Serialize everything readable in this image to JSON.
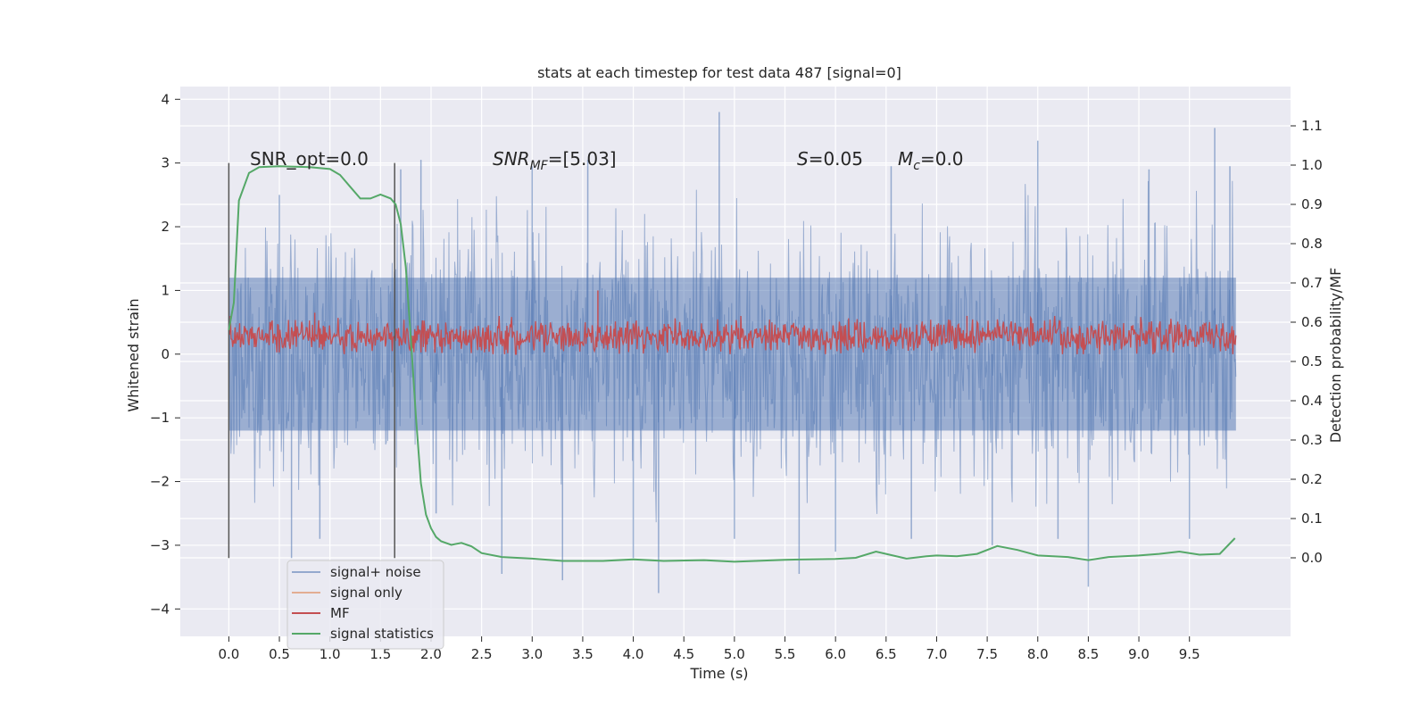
{
  "chart_data": {
    "type": "line",
    "title": "stats at each timestep for test data 487 [signal=0]",
    "xlabel": "Time (s)",
    "ylabel": "Whitened strain",
    "ylabel_right": "Detection probability/MF",
    "xlim": [
      -0.48,
      10.5
    ],
    "ylim": [
      -4.43,
      4.2
    ],
    "ylim_right": [
      -0.2,
      1.2
    ],
    "x_ticks": [
      0.0,
      0.5,
      1.0,
      1.5,
      2.0,
      2.5,
      3.0,
      3.5,
      4.0,
      4.5,
      5.0,
      5.5,
      6.0,
      6.5,
      7.0,
      7.5,
      8.0,
      8.5,
      9.0,
      9.5
    ],
    "x_tick_labels": [
      "0.0",
      "0.5",
      "1.0",
      "1.5",
      "2.0",
      "2.5",
      "3.0",
      "3.5",
      "4.0",
      "4.5",
      "5.0",
      "5.5",
      "6.0",
      "6.5",
      "7.0",
      "7.5",
      "8.0",
      "8.5",
      "9.0",
      "9.5"
    ],
    "y_ticks": [
      -4,
      -3,
      -2,
      -1,
      0,
      1,
      2,
      3,
      4
    ],
    "y_tick_labels": [
      "−4",
      "−3",
      "−2",
      "−1",
      "0",
      "1",
      "2",
      "3",
      "4"
    ],
    "y_ticks_right": [
      0.0,
      0.1,
      0.2,
      0.3,
      0.4,
      0.5,
      0.6,
      0.7,
      0.8,
      0.9,
      1.0,
      1.1
    ],
    "y_tick_labels_right": [
      "0.0",
      "0.1",
      "0.2",
      "0.3",
      "0.4",
      "0.5",
      "0.6",
      "0.7",
      "0.8",
      "0.9",
      "1.0",
      "1.1"
    ],
    "grid": true,
    "legend_position": "lower-left",
    "annotations": {
      "snr_opt": "SNR_opt=0.0",
      "snr_mf_base": "SNR",
      "snr_mf_sub": "MF",
      "snr_mf_value": "=[5.03]",
      "s_base": "S",
      "s_value": "=0.05",
      "mc_base": "M",
      "mc_sub": "c",
      "mc_value": "=0.0"
    },
    "vlines": [
      0.0,
      1.64
    ],
    "series": [
      {
        "name": "signal+ noise",
        "color": "#4c72b0",
        "axis": "left",
        "band_range": [
          -1.2,
          1.2
        ],
        "spike_points": [
          [
            0.5,
            2.5
          ],
          [
            0.62,
            -3.2
          ],
          [
            0.9,
            -2.9
          ],
          [
            1.7,
            2.9
          ],
          [
            1.9,
            3.05
          ],
          [
            2.05,
            -2.5
          ],
          [
            2.7,
            -3.45
          ],
          [
            3.0,
            2.95
          ],
          [
            3.3,
            -3.55
          ],
          [
            3.55,
            3.05
          ],
          [
            4.0,
            -3.2
          ],
          [
            4.25,
            -3.75
          ],
          [
            4.85,
            3.8
          ],
          [
            5.0,
            -2.9
          ],
          [
            5.64,
            -3.45
          ],
          [
            6.0,
            -3.1
          ],
          [
            6.55,
            2.95
          ],
          [
            6.75,
            -2.9
          ],
          [
            7.55,
            -3.0
          ],
          [
            8.0,
            3.35
          ],
          [
            8.2,
            -2.9
          ],
          [
            8.5,
            -3.65
          ],
          [
            9.1,
            2.9
          ],
          [
            9.5,
            -2.9
          ],
          [
            9.75,
            3.55
          ],
          [
            9.9,
            2.95
          ]
        ]
      },
      {
        "name": "signal only",
        "color": "#dd8452",
        "axis": "left",
        "values": []
      },
      {
        "name": "MF",
        "color": "#c44e52",
        "axis": "left",
        "band_range": [
          0.0,
          0.55
        ],
        "spike_points": [
          [
            3.65,
            1.0
          ],
          [
            0.85,
            0.65
          ],
          [
            7.3,
            0.6
          ]
        ]
      },
      {
        "name": "signal statistics",
        "color": "#55a868",
        "axis": "right",
        "x": [
          0.0,
          0.05,
          0.1,
          0.2,
          0.3,
          0.5,
          0.8,
          1.0,
          1.1,
          1.2,
          1.3,
          1.4,
          1.5,
          1.6,
          1.65,
          1.7,
          1.75,
          1.8,
          1.85,
          1.9,
          1.95,
          2.0,
          2.05,
          2.1,
          2.2,
          2.3,
          2.4,
          2.5,
          2.7,
          3.0,
          3.3,
          3.7,
          4.0,
          4.3,
          4.7,
          5.0,
          5.5,
          6.0,
          6.2,
          6.4,
          6.5,
          6.7,
          6.9,
          7.0,
          7.2,
          7.4,
          7.6,
          7.8,
          8.0,
          8.3,
          8.5,
          8.7,
          9.0,
          9.2,
          9.4,
          9.6,
          9.8,
          9.95
        ],
        "values": [
          0.58,
          0.65,
          0.91,
          0.98,
          0.995,
          0.997,
          0.995,
          0.99,
          0.975,
          0.945,
          0.915,
          0.915,
          0.925,
          0.915,
          0.9,
          0.85,
          0.74,
          0.56,
          0.36,
          0.19,
          0.11,
          0.075,
          0.053,
          0.042,
          0.033,
          0.038,
          0.029,
          0.012,
          0.002,
          -0.002,
          -0.008,
          -0.008,
          -0.004,
          -0.008,
          -0.006,
          -0.01,
          -0.005,
          -0.003,
          0.0,
          0.016,
          0.01,
          -0.002,
          0.004,
          0.006,
          0.004,
          0.01,
          0.03,
          0.02,
          0.006,
          0.002,
          -0.006,
          0.002,
          0.006,
          0.01,
          0.016,
          0.008,
          0.01,
          0.05
        ]
      }
    ]
  }
}
